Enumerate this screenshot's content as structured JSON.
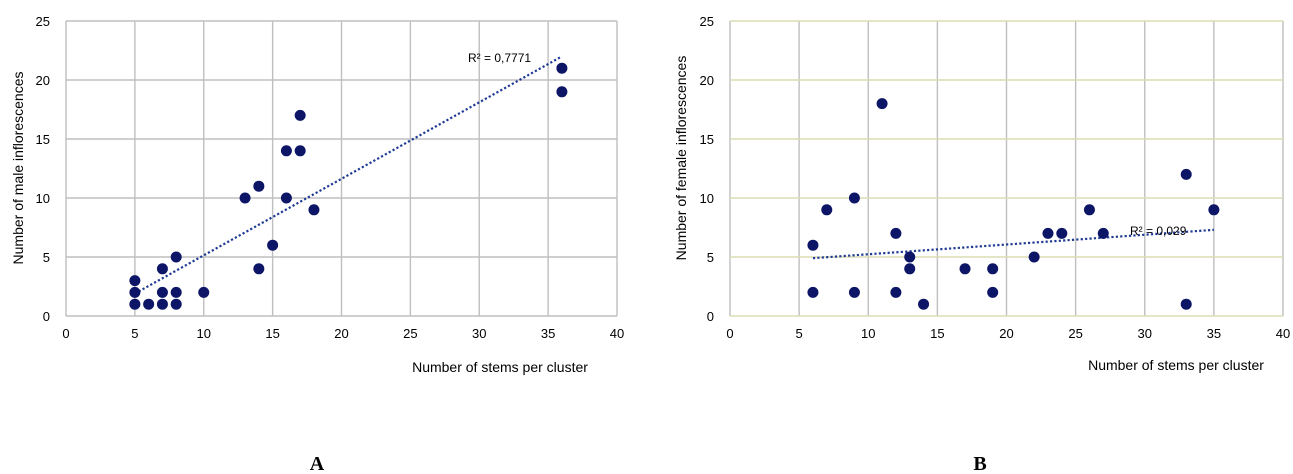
{
  "colors": {
    "marker": "#0d1566",
    "trendline": "#1f3a93",
    "grid_A": "#bfbfbf",
    "grid_B_vertical": "#bfbfbf",
    "grid_B_horizontal": "#dcdcb4"
  },
  "chart_data": [
    {
      "type": "scatter",
      "panel_label": "A",
      "xlabel": "Number of stems per cluster",
      "ylabel": "Number of male inflorescences",
      "xlim": [
        0,
        40
      ],
      "ylim": [
        0,
        25
      ],
      "x_ticks": [
        "0",
        "5",
        "10",
        "15",
        "20",
        "25",
        "30",
        "35",
        "40"
      ],
      "y_ticks": [
        "0",
        "5",
        "10",
        "15",
        "20",
        "25"
      ],
      "grid": true,
      "legend": "none",
      "trendline": {
        "type": "linear",
        "r2_label": "R² = 0,7771",
        "x_range": [
          5,
          36
        ],
        "y_range": [
          1.9,
          22
        ]
      },
      "points": [
        [
          5,
          3
        ],
        [
          5,
          2
        ],
        [
          5,
          1
        ],
        [
          6,
          1
        ],
        [
          7,
          4
        ],
        [
          7,
          2
        ],
        [
          7,
          1
        ],
        [
          8,
          5
        ],
        [
          8,
          2
        ],
        [
          8,
          1
        ],
        [
          10,
          2
        ],
        [
          13,
          10
        ],
        [
          14,
          11
        ],
        [
          14,
          4
        ],
        [
          15,
          6
        ],
        [
          16,
          14
        ],
        [
          16,
          10
        ],
        [
          17,
          17
        ],
        [
          17,
          14
        ],
        [
          18,
          9
        ],
        [
          36,
          21
        ],
        [
          36,
          19
        ]
      ]
    },
    {
      "type": "scatter",
      "panel_label": "B",
      "xlabel": "Number of stems per cluster",
      "ylabel": "Number of female inflorescences",
      "xlim": [
        0,
        40
      ],
      "ylim": [
        0,
        25
      ],
      "x_ticks": [
        "0",
        "5",
        "10",
        "15",
        "20",
        "25",
        "30",
        "35",
        "40"
      ],
      "y_ticks": [
        "0",
        "5",
        "10",
        "15",
        "20",
        "25"
      ],
      "grid": true,
      "legend": "none",
      "trendline": {
        "type": "linear",
        "r2_label": "R² = 0,029",
        "x_range": [
          6,
          35
        ],
        "y_range": [
          4.9,
          7.3
        ]
      },
      "points": [
        [
          6,
          6
        ],
        [
          6,
          2
        ],
        [
          7,
          9
        ],
        [
          9,
          10
        ],
        [
          9,
          2
        ],
        [
          11,
          18
        ],
        [
          12,
          7
        ],
        [
          12,
          2
        ],
        [
          13,
          5
        ],
        [
          13,
          4
        ],
        [
          14,
          1
        ],
        [
          17,
          4
        ],
        [
          19,
          4
        ],
        [
          19,
          2
        ],
        [
          22,
          5
        ],
        [
          23,
          7
        ],
        [
          24,
          7
        ],
        [
          26,
          9
        ],
        [
          27,
          7
        ],
        [
          33,
          12
        ],
        [
          33,
          1
        ],
        [
          35,
          9
        ]
      ]
    }
  ]
}
